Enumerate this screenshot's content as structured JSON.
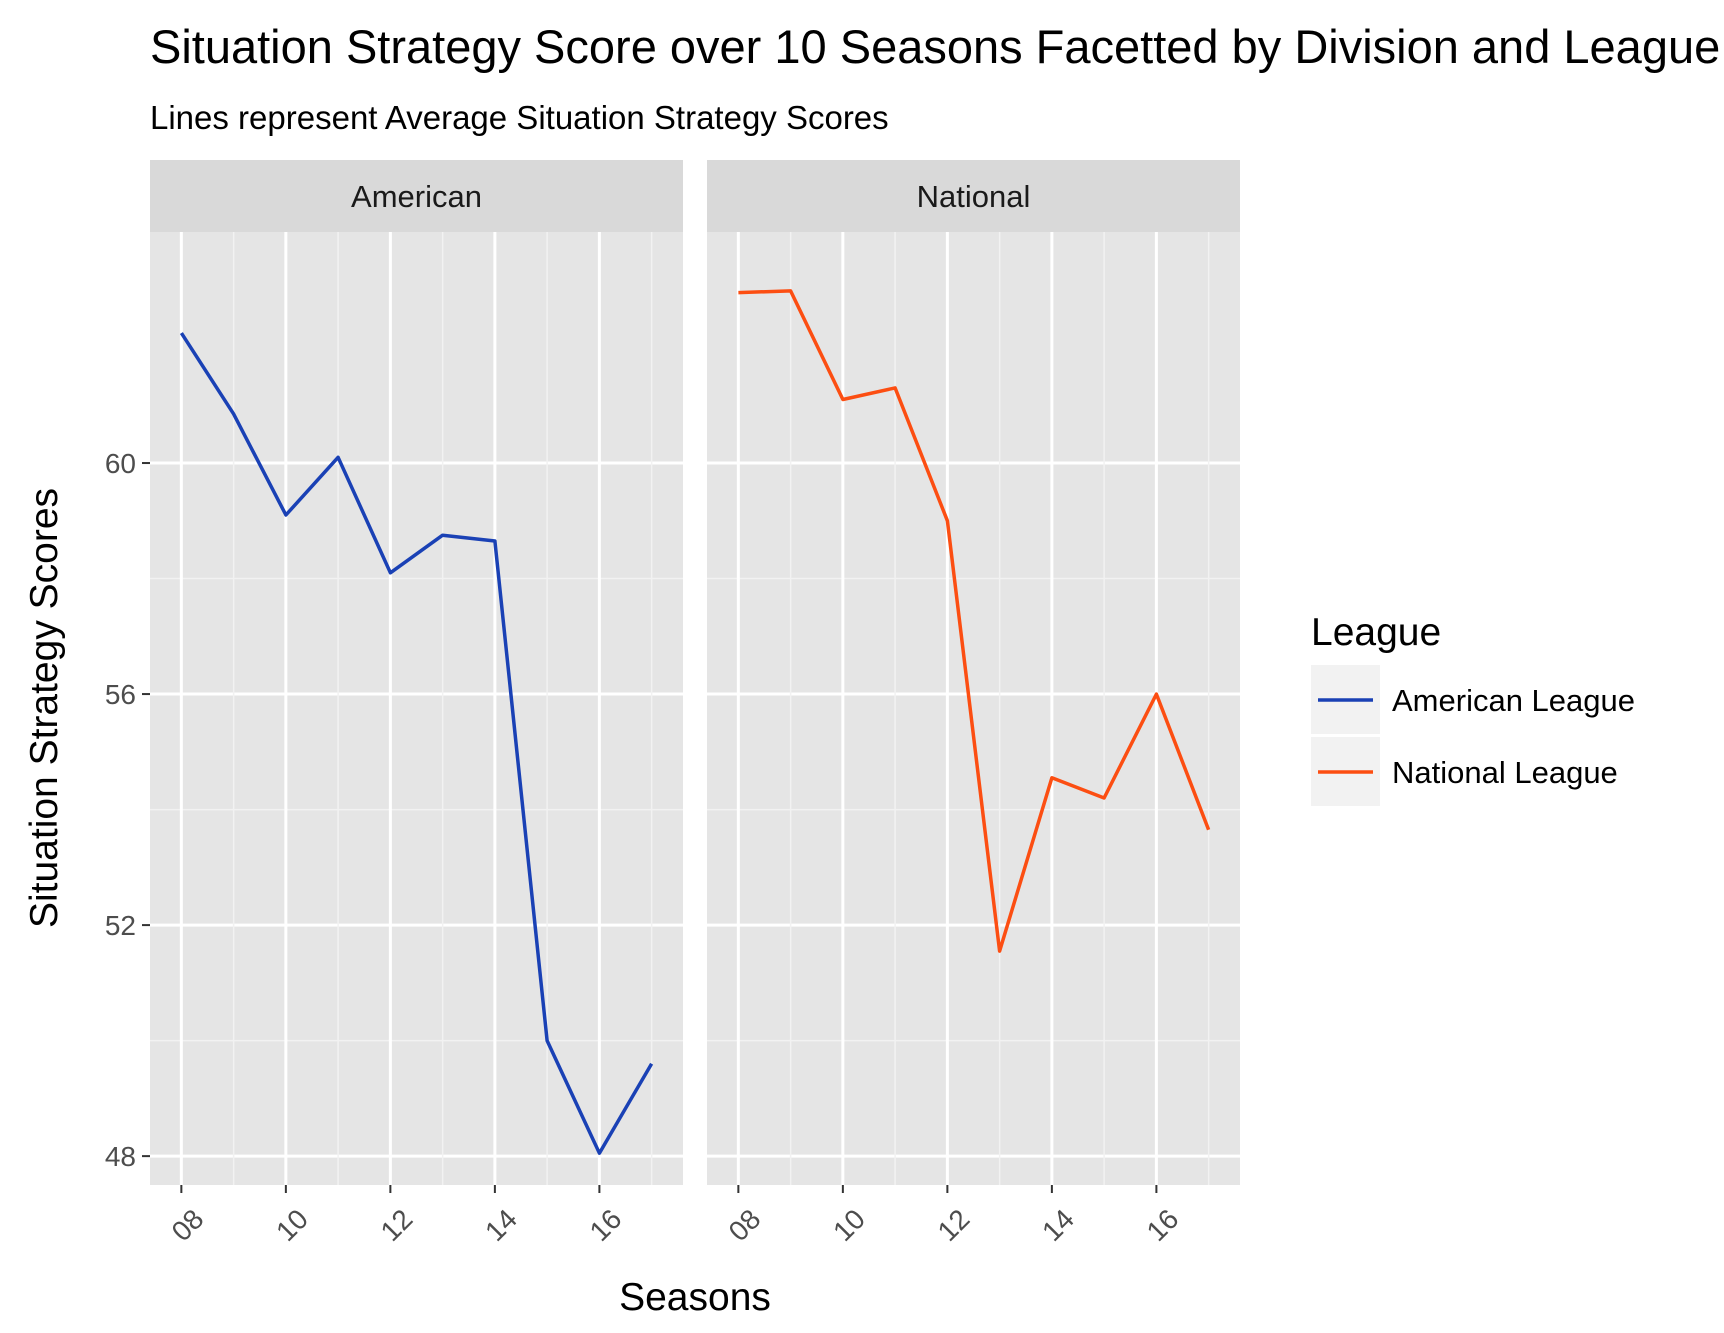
{
  "chart_data": {
    "type": "line",
    "title": "Situation Strategy Score over 10 Seasons Facetted by Division and League",
    "subtitle": "Lines represent Average Situation Strategy Scores",
    "xlabel": "Seasons",
    "ylabel": "Situation Strategy Scores",
    "x": [
      "08",
      "09",
      "10",
      "11",
      "12",
      "13",
      "14",
      "15",
      "16",
      "17"
    ],
    "x_tick_labels": [
      "08",
      "10",
      "12",
      "14",
      "16"
    ],
    "y_ticks": [
      48,
      52,
      56,
      60
    ],
    "ylim": [
      47.5,
      64.0
    ],
    "grid": true,
    "legend_position": "right",
    "legend_title": "League",
    "panels": [
      {
        "strip_label": "American",
        "series": [
          {
            "name": "American League",
            "color": "#1a41b5",
            "values": [
              62.25,
              60.85,
              59.1,
              60.1,
              58.1,
              58.75,
              58.65,
              50.0,
              48.05,
              49.6
            ]
          }
        ]
      },
      {
        "strip_label": "National",
        "series": [
          {
            "name": "National League",
            "color": "#fc4e12",
            "values": [
              62.95,
              62.98,
              61.1,
              61.3,
              59.0,
              51.55,
              54.55,
              54.2,
              56.0,
              53.65
            ]
          }
        ]
      }
    ],
    "legend": [
      {
        "label": "American League",
        "color": "#1a41b5"
      },
      {
        "label": "National League",
        "color": "#fc4e12"
      }
    ]
  }
}
